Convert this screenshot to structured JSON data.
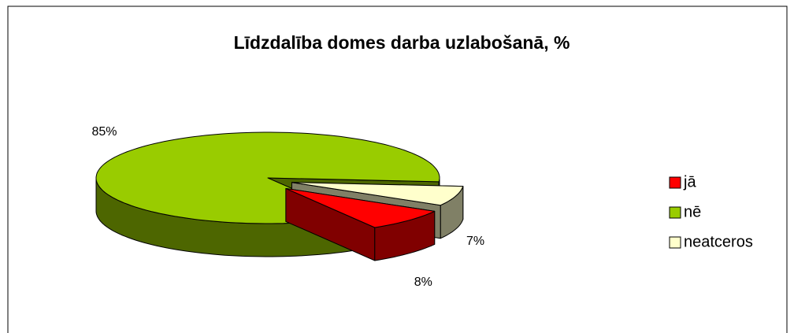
{
  "chart_data": {
    "type": "pie3d",
    "title": "Līdzdalība domes darba uzlabošanā, %",
    "categories": [
      "jā",
      "nē",
      "neatceros"
    ],
    "series": [
      {
        "name": "Līdzdalība",
        "values": [
          8,
          85,
          7
        ],
        "value_labels": [
          "8%",
          "85%",
          "7%"
        ],
        "colors": [
          "#ff0000",
          "#99cc00",
          "#ffffcc"
        ],
        "exploded": [
          true,
          false,
          true
        ]
      }
    ],
    "legend": "right"
  }
}
